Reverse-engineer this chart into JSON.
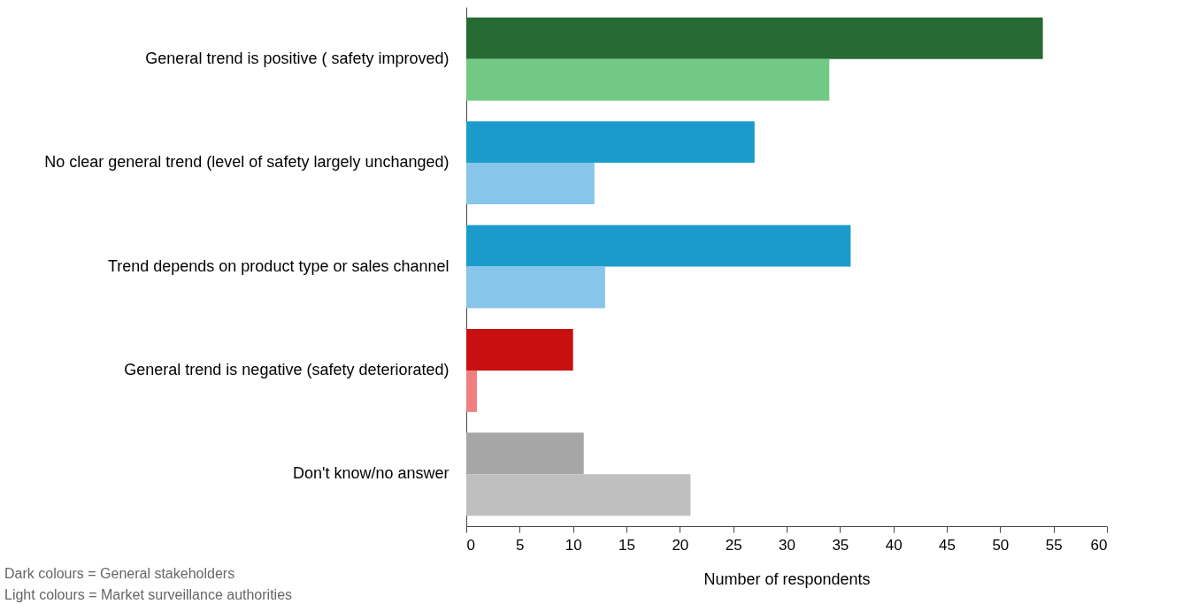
{
  "chart_data": {
    "type": "bar",
    "orientation": "horizontal",
    "categories": [
      "General trend is positive ( safety improved)",
      "No clear general trend (level of safety largely unchanged)",
      "Trend depends on product type or sales channel",
      "General trend is negative (safety deteriorated)",
      "Don't know/no answer"
    ],
    "series": [
      {
        "colors": [
          "#256b33",
          "#1a9bcb",
          "#1a9bcb",
          "#c81010",
          "#a6a6a6"
        ],
        "values": [
          54,
          27,
          36,
          10,
          11
        ]
      },
      {
        "colors": [
          "#72c983",
          "#87c5ea",
          "#87c5ea",
          "#f08080",
          "#bfbfbf"
        ],
        "values": [
          34,
          12,
          13,
          1,
          21
        ]
      }
    ],
    "xlim": [
      0,
      60
    ],
    "xticks": [
      0,
      5,
      10,
      15,
      20,
      25,
      30,
      35,
      40,
      45,
      50,
      55,
      60
    ],
    "xlabel": "Number of respondents",
    "annotations": [
      "Dark colours = General stakeholders",
      "Light colours = Market surveillance authorities"
    ]
  }
}
